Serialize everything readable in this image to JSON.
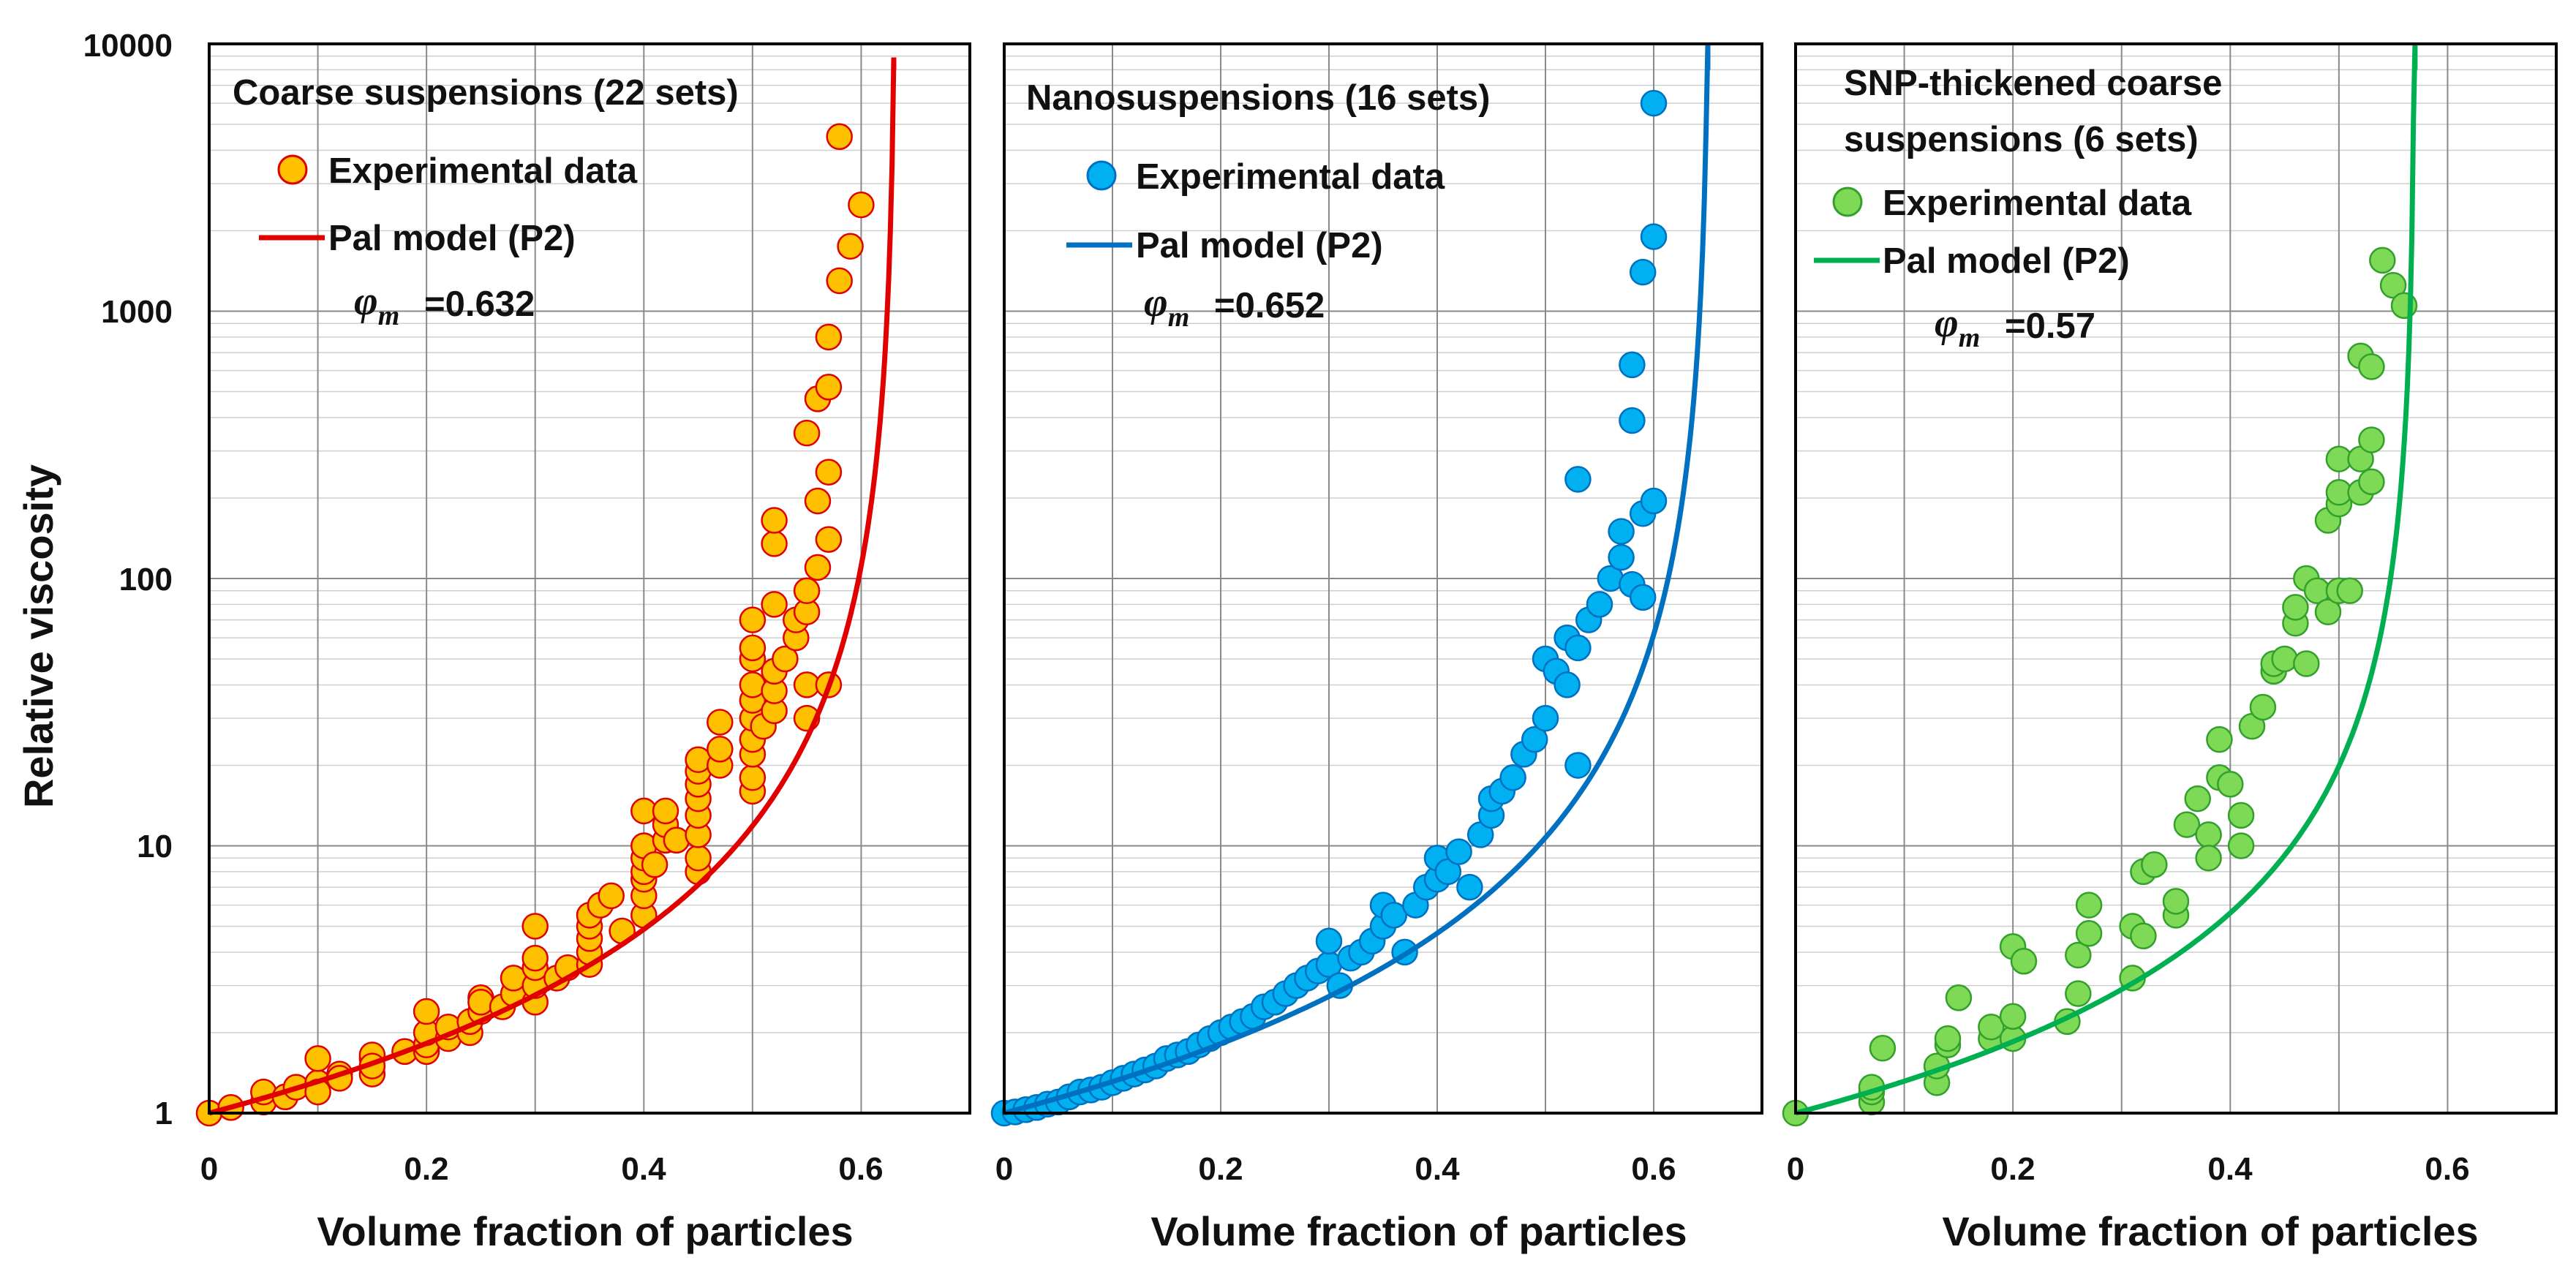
{
  "figure": {
    "ylabel": "Relative viscosity",
    "y_ticks": [
      "1",
      "10",
      "100",
      "1000",
      "10000"
    ]
  },
  "chart_data": [
    {
      "type": "scatter",
      "title_lines": [
        "Coarse suspensions (22 sets)"
      ],
      "xlabel": "Volume fraction of particles",
      "ylabel": "Relative viscosity",
      "xlim": [
        0,
        0.7
      ],
      "ylim": [
        1,
        10000
      ],
      "yscale": "log",
      "x_ticks": [
        "0",
        "0.2",
        "0.4",
        "0.6"
      ],
      "legend": {
        "scatter_label": "Experimental data",
        "line_label": "Pal model (P2)",
        "phi_label": "=0.632"
      },
      "colors": {
        "marker_fill": "#FFC000",
        "marker_edge": "#E00000",
        "line": "#E00000"
      },
      "phi_m": 0.632,
      "line_x_end": 0.63,
      "points": [
        [
          0,
          1
        ],
        [
          0.02,
          1.05
        ],
        [
          0.05,
          1.1
        ],
        [
          0.05,
          1.2
        ],
        [
          0.07,
          1.15
        ],
        [
          0.08,
          1.25
        ],
        [
          0.1,
          1.3
        ],
        [
          0.1,
          1.6
        ],
        [
          0.1,
          1.2
        ],
        [
          0.12,
          1.4
        ],
        [
          0.12,
          1.35
        ],
        [
          0.15,
          1.4
        ],
        [
          0.15,
          1.6
        ],
        [
          0.15,
          1.65
        ],
        [
          0.15,
          1.5
        ],
        [
          0.18,
          1.7
        ],
        [
          0.2,
          1.7
        ],
        [
          0.2,
          1.8
        ],
        [
          0.2,
          2.0
        ],
        [
          0.2,
          2.4
        ],
        [
          0.22,
          1.9
        ],
        [
          0.22,
          2.1
        ],
        [
          0.24,
          2.0
        ],
        [
          0.24,
          2.2
        ],
        [
          0.25,
          2.4
        ],
        [
          0.25,
          2.7
        ],
        [
          0.25,
          2.6
        ],
        [
          0.27,
          2.5
        ],
        [
          0.28,
          2.8
        ],
        [
          0.28,
          3.2
        ],
        [
          0.3,
          2.6
        ],
        [
          0.3,
          3.0
        ],
        [
          0.3,
          3.5
        ],
        [
          0.3,
          3.8
        ],
        [
          0.3,
          5.0
        ],
        [
          0.32,
          3.2
        ],
        [
          0.33,
          3.5
        ],
        [
          0.35,
          3.6
        ],
        [
          0.35,
          4.0
        ],
        [
          0.35,
          4.5
        ],
        [
          0.35,
          5.0
        ],
        [
          0.35,
          5.5
        ],
        [
          0.36,
          6.0
        ],
        [
          0.37,
          6.5
        ],
        [
          0.38,
          4.8
        ],
        [
          0.4,
          5.5
        ],
        [
          0.4,
          6.5
        ],
        [
          0.4,
          7.5
        ],
        [
          0.4,
          8.0
        ],
        [
          0.4,
          9.0
        ],
        [
          0.4,
          10.0
        ],
        [
          0.4,
          13.5
        ],
        [
          0.41,
          8.5
        ],
        [
          0.42,
          10.5
        ],
        [
          0.42,
          12.0
        ],
        [
          0.42,
          13.5
        ],
        [
          0.43,
          10.5
        ],
        [
          0.45,
          8.0
        ],
        [
          0.45,
          9.0
        ],
        [
          0.45,
          11.0
        ],
        [
          0.45,
          13.0
        ],
        [
          0.45,
          15.0
        ],
        [
          0.45,
          17.0
        ],
        [
          0.45,
          19.0
        ],
        [
          0.45,
          21.0
        ],
        [
          0.47,
          20.0
        ],
        [
          0.47,
          23.0
        ],
        [
          0.47,
          29.0
        ],
        [
          0.5,
          16.0
        ],
        [
          0.5,
          18.0
        ],
        [
          0.5,
          22.0
        ],
        [
          0.5,
          25.0
        ],
        [
          0.5,
          30.0
        ],
        [
          0.5,
          35.0
        ],
        [
          0.5,
          40.0
        ],
        [
          0.5,
          50.0
        ],
        [
          0.5,
          55.0
        ],
        [
          0.5,
          70.0
        ],
        [
          0.51,
          28.0
        ],
        [
          0.52,
          32.0
        ],
        [
          0.52,
          38.0
        ],
        [
          0.52,
          45.0
        ],
        [
          0.52,
          80.0
        ],
        [
          0.52,
          135.0
        ],
        [
          0.52,
          165.0
        ],
        [
          0.53,
          50.0
        ],
        [
          0.54,
          60.0
        ],
        [
          0.54,
          70.0
        ],
        [
          0.55,
          30.0
        ],
        [
          0.55,
          40.0
        ],
        [
          0.55,
          75.0
        ],
        [
          0.55,
          90.0
        ],
        [
          0.55,
          350.0
        ],
        [
          0.56,
          110.0
        ],
        [
          0.56,
          195.0
        ],
        [
          0.56,
          470.0
        ],
        [
          0.57,
          40.0
        ],
        [
          0.57,
          140.0
        ],
        [
          0.57,
          250.0
        ],
        [
          0.57,
          520.0
        ],
        [
          0.57,
          800.0
        ],
        [
          0.58,
          1300.0
        ],
        [
          0.58,
          4500.0
        ],
        [
          0.59,
          1750.0
        ],
        [
          0.6,
          2500.0
        ]
      ]
    },
    {
      "type": "scatter",
      "title_lines": [
        "Nanosuspensions (16 sets)"
      ],
      "xlabel": "Volume fraction of particles",
      "ylabel": "Relative viscosity",
      "xlim": [
        0,
        0.7
      ],
      "ylim": [
        1,
        10000
      ],
      "yscale": "log",
      "x_ticks": [
        "0",
        "0.2",
        "0.4",
        "0.6"
      ],
      "legend": {
        "scatter_label": "Experimental data",
        "line_label": "Pal model (P2)",
        "phi_label": "=0.652"
      },
      "colors": {
        "marker_fill": "#00B0F0",
        "marker_edge": "#0070C0",
        "line": "#0070C0"
      },
      "phi_m": 0.652,
      "line_x_end": 0.65,
      "points": [
        [
          0,
          1
        ],
        [
          0.01,
          1.01
        ],
        [
          0.02,
          1.03
        ],
        [
          0.03,
          1.05
        ],
        [
          0.04,
          1.08
        ],
        [
          0.05,
          1.1
        ],
        [
          0.06,
          1.15
        ],
        [
          0.07,
          1.2
        ],
        [
          0.08,
          1.22
        ],
        [
          0.09,
          1.25
        ],
        [
          0.1,
          1.3
        ],
        [
          0.11,
          1.35
        ],
        [
          0.12,
          1.4
        ],
        [
          0.13,
          1.45
        ],
        [
          0.14,
          1.5
        ],
        [
          0.15,
          1.6
        ],
        [
          0.16,
          1.65
        ],
        [
          0.17,
          1.7
        ],
        [
          0.18,
          1.8
        ],
        [
          0.19,
          1.9
        ],
        [
          0.2,
          2.0
        ],
        [
          0.21,
          2.1
        ],
        [
          0.22,
          2.2
        ],
        [
          0.23,
          2.3
        ],
        [
          0.24,
          2.5
        ],
        [
          0.25,
          2.6
        ],
        [
          0.26,
          2.8
        ],
        [
          0.27,
          3.0
        ],
        [
          0.28,
          3.2
        ],
        [
          0.29,
          3.4
        ],
        [
          0.3,
          3.6
        ],
        [
          0.3,
          4.4
        ],
        [
          0.31,
          3.0
        ],
        [
          0.32,
          3.8
        ],
        [
          0.33,
          4.0
        ],
        [
          0.34,
          4.4
        ],
        [
          0.35,
          5.0
        ],
        [
          0.35,
          6.0
        ],
        [
          0.36,
          5.5
        ],
        [
          0.37,
          4.0
        ],
        [
          0.38,
          6.0
        ],
        [
          0.39,
          7.0
        ],
        [
          0.4,
          7.5
        ],
        [
          0.4,
          9.0
        ],
        [
          0.41,
          8.0
        ],
        [
          0.42,
          9.5
        ],
        [
          0.43,
          7.0
        ],
        [
          0.44,
          11.0
        ],
        [
          0.45,
          13.0
        ],
        [
          0.45,
          15.0
        ],
        [
          0.46,
          16.0
        ],
        [
          0.47,
          18.0
        ],
        [
          0.48,
          22.0
        ],
        [
          0.49,
          25.0
        ],
        [
          0.5,
          30.0
        ],
        [
          0.5,
          50.0
        ],
        [
          0.51,
          45.0
        ],
        [
          0.52,
          40.0
        ],
        [
          0.52,
          60.0
        ],
        [
          0.53,
          55.0
        ],
        [
          0.53,
          20.0
        ],
        [
          0.53,
          235.0
        ],
        [
          0.54,
          70.0
        ],
        [
          0.55,
          80.0
        ],
        [
          0.56,
          100.0
        ],
        [
          0.57,
          120.0
        ],
        [
          0.57,
          150.0
        ],
        [
          0.58,
          95.0
        ],
        [
          0.58,
          390.0
        ],
        [
          0.58,
          630.0
        ],
        [
          0.59,
          85.0
        ],
        [
          0.59,
          175.0
        ],
        [
          0.59,
          1400.0
        ],
        [
          0.6,
          195.0
        ],
        [
          0.6,
          1900.0
        ],
        [
          0.6,
          6000.0
        ]
      ]
    },
    {
      "type": "scatter",
      "title_lines": [
        "SNP-thickened coarse",
        "suspensions (6 sets)"
      ],
      "xlabel": "Volume fraction of particles",
      "ylabel": "Relative viscosity",
      "xlim": [
        0,
        0.7
      ],
      "ylim": [
        1,
        10000
      ],
      "yscale": "log",
      "x_ticks": [
        "0",
        "0.2",
        "0.4",
        "0.6"
      ],
      "legend": {
        "scatter_label": "Experimental data",
        "line_label": "Pal model (P2)",
        "phi_label": "=0.57"
      },
      "colors": {
        "marker_fill": "#7ED957",
        "marker_edge": "#33A02C",
        "line": "#00B050"
      },
      "phi_m": 0.57,
      "line_x_end": 0.57,
      "points": [
        [
          0,
          1
        ],
        [
          0.07,
          1.1
        ],
        [
          0.07,
          1.2
        ],
        [
          0.07,
          1.25
        ],
        [
          0.08,
          1.75
        ],
        [
          0.13,
          1.3
        ],
        [
          0.13,
          1.5
        ],
        [
          0.14,
          1.8
        ],
        [
          0.14,
          1.9
        ],
        [
          0.15,
          2.7
        ],
        [
          0.18,
          1.9
        ],
        [
          0.18,
          2.1
        ],
        [
          0.2,
          1.9
        ],
        [
          0.2,
          2.3
        ],
        [
          0.2,
          4.2
        ],
        [
          0.21,
          3.7
        ],
        [
          0.25,
          2.2
        ],
        [
          0.26,
          2.8
        ],
        [
          0.26,
          3.9
        ],
        [
          0.27,
          6.0
        ],
        [
          0.27,
          4.7
        ],
        [
          0.31,
          3.2
        ],
        [
          0.31,
          5.0
        ],
        [
          0.32,
          4.6
        ],
        [
          0.32,
          8.0
        ],
        [
          0.33,
          8.5
        ],
        [
          0.35,
          5.5
        ],
        [
          0.35,
          6.2
        ],
        [
          0.36,
          12.0
        ],
        [
          0.37,
          15.0
        ],
        [
          0.38,
          11.0
        ],
        [
          0.38,
          9.0
        ],
        [
          0.39,
          18.0
        ],
        [
          0.39,
          25.0
        ],
        [
          0.4,
          17.0
        ],
        [
          0.41,
          10.0
        ],
        [
          0.41,
          13.0
        ],
        [
          0.42,
          28.0
        ],
        [
          0.43,
          33.0
        ],
        [
          0.44,
          45.0
        ],
        [
          0.44,
          48.0
        ],
        [
          0.45,
          50.0
        ],
        [
          0.46,
          68.0
        ],
        [
          0.46,
          78.0
        ],
        [
          0.47,
          100.0
        ],
        [
          0.47,
          48.0
        ],
        [
          0.48,
          90.0
        ],
        [
          0.49,
          75.0
        ],
        [
          0.49,
          165.0
        ],
        [
          0.5,
          90.0
        ],
        [
          0.5,
          190.0
        ],
        [
          0.5,
          210.0
        ],
        [
          0.5,
          280.0
        ],
        [
          0.51,
          90.0
        ],
        [
          0.52,
          210.0
        ],
        [
          0.52,
          280.0
        ],
        [
          0.52,
          680.0
        ],
        [
          0.53,
          230.0
        ],
        [
          0.53,
          330.0
        ],
        [
          0.53,
          620.0
        ],
        [
          0.54,
          1550.0
        ],
        [
          0.55,
          1250.0
        ],
        [
          0.56,
          1050.0
        ]
      ]
    }
  ]
}
